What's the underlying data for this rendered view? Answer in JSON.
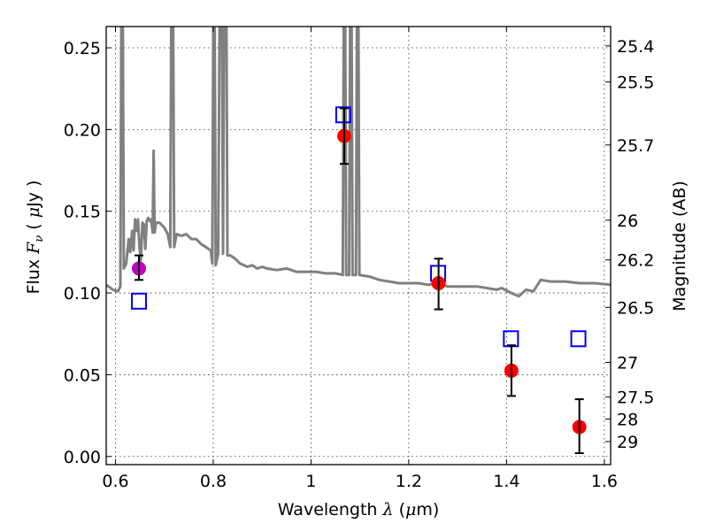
{
  "chart_data": {
    "type": "scatter",
    "xlabel": "Wavelength  λ (μm)",
    "xlabel_parts": {
      "pre": "Wavelength  ",
      "sym": "λ",
      "post": " (",
      "mu": "μ",
      "unit": "m)"
    },
    "ylabel": "Flux  F_ν  ( μJy )",
    "ylabel_parts": {
      "pre": "Flux  ",
      "sym": "F",
      "sub": "ν",
      "mid": "  ( ",
      "mu": "μ",
      "post": "Jy )"
    },
    "y2label": "Magnitude (AB)",
    "xlim": [
      0.581,
      1.613
    ],
    "ylim": [
      -0.005,
      0.263
    ],
    "grid": true,
    "xticks": [
      {
        "value": 0.6,
        "label": "0.6"
      },
      {
        "value": 0.8,
        "label": "0.8"
      },
      {
        "value": 1.0,
        "label": "1"
      },
      {
        "value": 1.2,
        "label": "1.2"
      },
      {
        "value": 1.4,
        "label": "1.4"
      },
      {
        "value": 1.6,
        "label": "1.6"
      }
    ],
    "yticks": [
      {
        "value": 0.0,
        "label": "0.00"
      },
      {
        "value": 0.05,
        "label": "0.05"
      },
      {
        "value": 0.1,
        "label": "0.10"
      },
      {
        "value": 0.15,
        "label": "0.15"
      },
      {
        "value": 0.2,
        "label": "0.20"
      },
      {
        "value": 0.25,
        "label": "0.25"
      }
    ],
    "y2ticks": [
      {
        "value": 25.4,
        "label": "25.4"
      },
      {
        "value": 25.5,
        "label": "25.5"
      },
      {
        "value": 25.7,
        "label": "25.7"
      },
      {
        "value": 26.0,
        "label": "26"
      },
      {
        "value": 26.2,
        "label": "26.2"
      },
      {
        "value": 26.5,
        "label": "26.5"
      },
      {
        "value": 27.0,
        "label": "27"
      },
      {
        "value": 27.5,
        "label": "27.5"
      },
      {
        "value": 28.0,
        "label": "28"
      },
      {
        "value": 29.0,
        "label": "29"
      }
    ],
    "series": [
      {
        "name": "model-spectrum",
        "kind": "line",
        "color": "#808080",
        "points": [
          [
            0.581,
            0.105
          ],
          [
            0.595,
            0.102
          ],
          [
            0.605,
            0.101
          ],
          [
            0.61,
            0.104
          ],
          [
            0.612,
            0.263
          ],
          [
            0.615,
            0.263
          ],
          [
            0.617,
            0.115
          ],
          [
            0.622,
            0.118
          ],
          [
            0.627,
            0.133
          ],
          [
            0.63,
            0.125
          ],
          [
            0.634,
            0.138
          ],
          [
            0.637,
            0.126
          ],
          [
            0.64,
            0.145
          ],
          [
            0.643,
            0.138
          ],
          [
            0.646,
            0.145
          ],
          [
            0.649,
            0.128
          ],
          [
            0.652,
            0.12
          ],
          [
            0.655,
            0.143
          ],
          [
            0.658,
            0.142
          ],
          [
            0.661,
            0.127
          ],
          [
            0.664,
            0.144
          ],
          [
            0.667,
            0.146
          ],
          [
            0.67,
            0.144
          ],
          [
            0.673,
            0.145
          ],
          [
            0.676,
            0.137
          ],
          [
            0.678,
            0.187
          ],
          [
            0.68,
            0.137
          ],
          [
            0.683,
            0.143
          ],
          [
            0.69,
            0.143
          ],
          [
            0.7,
            0.14
          ],
          [
            0.707,
            0.136
          ],
          [
            0.712,
            0.128
          ],
          [
            0.714,
            0.263
          ],
          [
            0.718,
            0.263
          ],
          [
            0.72,
            0.128
          ],
          [
            0.725,
            0.136
          ],
          [
            0.735,
            0.135
          ],
          [
            0.745,
            0.136
          ],
          [
            0.755,
            0.133
          ],
          [
            0.765,
            0.133
          ],
          [
            0.775,
            0.13
          ],
          [
            0.785,
            0.128
          ],
          [
            0.795,
            0.126
          ],
          [
            0.798,
            0.118
          ],
          [
            0.8,
            0.263
          ],
          [
            0.803,
            0.263
          ],
          [
            0.805,
            0.117
          ],
          [
            0.81,
            0.124
          ],
          [
            0.813,
            0.263
          ],
          [
            0.818,
            0.263
          ],
          [
            0.82,
            0.124
          ],
          [
            0.822,
            0.263
          ],
          [
            0.827,
            0.263
          ],
          [
            0.829,
            0.123
          ],
          [
            0.835,
            0.123
          ],
          [
            0.845,
            0.121
          ],
          [
            0.855,
            0.118
          ],
          [
            0.87,
            0.116
          ],
          [
            0.88,
            0.117
          ],
          [
            0.89,
            0.115
          ],
          [
            0.9,
            0.116
          ],
          [
            0.91,
            0.115
          ],
          [
            0.93,
            0.114
          ],
          [
            0.95,
            0.115
          ],
          [
            0.97,
            0.113
          ],
          [
            0.99,
            0.113
          ],
          [
            1.01,
            0.113
          ],
          [
            1.03,
            0.112
          ],
          [
            1.05,
            0.112
          ],
          [
            1.065,
            0.111
          ],
          [
            1.067,
            0.263
          ],
          [
            1.07,
            0.263
          ],
          [
            1.072,
            0.111
          ],
          [
            1.078,
            0.111
          ],
          [
            1.08,
            0.263
          ],
          [
            1.083,
            0.263
          ],
          [
            1.085,
            0.111
          ],
          [
            1.092,
            0.111
          ],
          [
            1.094,
            0.263
          ],
          [
            1.097,
            0.263
          ],
          [
            1.099,
            0.111
          ],
          [
            1.12,
            0.11
          ],
          [
            1.14,
            0.108
          ],
          [
            1.16,
            0.107
          ],
          [
            1.18,
            0.106
          ],
          [
            1.2,
            0.106
          ],
          [
            1.22,
            0.106
          ],
          [
            1.24,
            0.105
          ],
          [
            1.26,
            0.106
          ],
          [
            1.28,
            0.104
          ],
          [
            1.3,
            0.104
          ],
          [
            1.32,
            0.104
          ],
          [
            1.34,
            0.104
          ],
          [
            1.36,
            0.103
          ],
          [
            1.38,
            0.102
          ],
          [
            1.39,
            0.103
          ],
          [
            1.41,
            0.1
          ],
          [
            1.425,
            0.098
          ],
          [
            1.44,
            0.102
          ],
          [
            1.455,
            0.101
          ],
          [
            1.47,
            0.108
          ],
          [
            1.49,
            0.107
          ],
          [
            1.52,
            0.107
          ],
          [
            1.55,
            0.106
          ],
          [
            1.58,
            0.106
          ],
          [
            1.613,
            0.105
          ]
        ]
      },
      {
        "name": "model-photometry",
        "kind": "open-square",
        "color": "#0000ff",
        "x": [
          0.648,
          1.066,
          1.26,
          1.409,
          1.547
        ],
        "y": [
          0.095,
          0.209,
          0.112,
          0.072,
          0.072
        ]
      },
      {
        "name": "detection-optical",
        "kind": "circle",
        "color": "#bf00bf",
        "x": [
          0.648
        ],
        "y": [
          0.115
        ],
        "yerr_low": [
          0.108
        ],
        "yerr_high": [
          0.123
        ]
      },
      {
        "name": "detections",
        "kind": "circle",
        "color": "#ff0000",
        "x": [
          1.068,
          1.261,
          1.41,
          1.549
        ],
        "y": [
          0.196,
          0.106,
          0.0525,
          0.018
        ],
        "yerr_low": [
          0.179,
          0.09,
          0.037,
          0.002
        ],
        "yerr_high": [
          0.213,
          0.121,
          0.068,
          0.035
        ]
      }
    ]
  }
}
